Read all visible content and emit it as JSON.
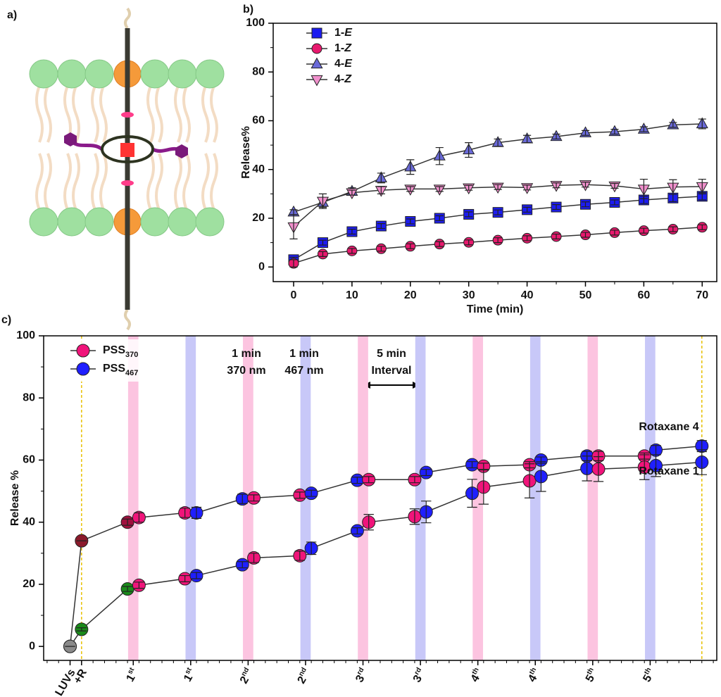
{
  "panel_labels": [
    "a)",
    "b)",
    "c)"
  ],
  "chart_data": [
    {
      "type": "line",
      "x_label": "Time (min)",
      "y_label": "Release%",
      "x": [
        0,
        5,
        10,
        15,
        20,
        25,
        30,
        35,
        40,
        45,
        50,
        55,
        60,
        65,
        70
      ],
      "xlim": [
        -3.5,
        72.5
      ],
      "xticks": [
        0,
        10,
        20,
        30,
        40,
        50,
        60,
        70
      ],
      "xminor": 5,
      "ylim": [
        -6,
        100
      ],
      "yticks": [
        0,
        20,
        40,
        60,
        80,
        100
      ],
      "yminor": 10,
      "legend_position": "upper left",
      "series": [
        {
          "name": "1-E",
          "color": "#1c1cf0",
          "marker": "square",
          "values": [
            3,
            10,
            14.5,
            16.8,
            18.7,
            20,
            21.6,
            22.4,
            23.5,
            24.6,
            25.7,
            26.5,
            27.5,
            28.3,
            29
          ],
          "errors": [
            1,
            1,
            1,
            1,
            1,
            1,
            1,
            1,
            1,
            1,
            1,
            1,
            1.5,
            1.5,
            1.5
          ]
        },
        {
          "name": "1-Z",
          "color": "#e8196e",
          "marker": "circle",
          "values": [
            1.5,
            5.3,
            6.6,
            7.5,
            8.5,
            9.4,
            10.1,
            11,
            11.8,
            12.5,
            13.2,
            14.1,
            14.9,
            15.5,
            16.3
          ],
          "errors": [
            1.5,
            1,
            1,
            1,
            1,
            1,
            1,
            1,
            1,
            1,
            1,
            1,
            1,
            1,
            1
          ]
        },
        {
          "name": "4-E",
          "color": "#6a6ad8",
          "marker": "triangle-up",
          "values": [
            22.5,
            26.5,
            31,
            36.5,
            41,
            45.5,
            48,
            51,
            52.5,
            53.5,
            55,
            55.5,
            56.5,
            58.3,
            58.7
          ],
          "errors": [
            1,
            2,
            1.5,
            2,
            3,
            3.5,
            3,
            1.5,
            1.5,
            1,
            1,
            1,
            1,
            1,
            2
          ]
        },
        {
          "name": "4-Z",
          "color": "#f090cc",
          "marker": "triangle-down",
          "values": [
            16.5,
            27,
            30.5,
            31.5,
            32,
            32,
            32.5,
            32.8,
            32.6,
            33.5,
            33.8,
            33.3,
            32,
            32.8,
            33
          ],
          "errors": [
            5,
            3,
            1,
            1.5,
            1,
            1,
            1,
            1,
            1,
            1,
            1,
            1,
            4,
            3,
            3
          ]
        }
      ]
    },
    {
      "type": "line",
      "y_label": "Release %",
      "x": [
        0,
        1,
        5,
        6,
        10,
        11,
        15,
        16,
        20,
        21,
        25,
        26,
        30,
        31,
        35,
        36,
        40,
        41,
        45,
        46,
        50,
        51,
        55
      ],
      "xlim": [
        -2.3,
        56.3
      ],
      "xticks": [
        {
          "value": 0,
          "label": "LUVs"
        },
        {
          "value": 1,
          "label": "+R"
        },
        {
          "value": 5.5,
          "label": "1st"
        },
        {
          "value": 10.5,
          "label": "1st"
        },
        {
          "value": 15.5,
          "label": "2nd"
        },
        {
          "value": 20.5,
          "label": "2nd"
        },
        {
          "value": 25.5,
          "label": "3rd"
        },
        {
          "value": 30.5,
          "label": "3rd"
        },
        {
          "value": 35.5,
          "label": "4th"
        },
        {
          "value": 40.5,
          "label": "4th"
        },
        {
          "value": 45.5,
          "label": "5th"
        },
        {
          "value": 50.5,
          "label": "5th"
        }
      ],
      "xminor": 1,
      "ylim": [
        -4.5,
        100
      ],
      "yticks": [
        0,
        20,
        40,
        60,
        80,
        100
      ],
      "yminor": 10,
      "legend_position": "upper left",
      "legend": [
        {
          "name": "PSS370",
          "color": "#f0147a"
        },
        {
          "name": "PSS467",
          "color": "#1f1fff"
        }
      ],
      "stripes": [
        {
          "x": 5.5,
          "color": "#fcc4e0"
        },
        {
          "x": 10.5,
          "color": "#c8c8f8"
        },
        {
          "x": 15.5,
          "color": "#fcc4e0"
        },
        {
          "x": 20.5,
          "color": "#c8c8f8"
        },
        {
          "x": 25.5,
          "color": "#fcc4e0"
        },
        {
          "x": 30.5,
          "color": "#c8c8f8"
        },
        {
          "x": 35.5,
          "color": "#fcc4e0"
        },
        {
          "x": 40.5,
          "color": "#c8c8f8"
        },
        {
          "x": 45.5,
          "color": "#fcc4e0"
        },
        {
          "x": 50.5,
          "color": "#c8c8f8"
        }
      ],
      "stripe_width": 0.9,
      "dashed_x": [
        1,
        55
      ],
      "annotations": [
        "1 min",
        "370 nm",
        "1 min",
        "467 nm",
        "5 min",
        "Interval"
      ],
      "series": [
        {
          "name": "Rotaxane 4",
          "color": "#333333",
          "values": [
            0,
            34,
            40,
            41.5,
            43,
            43,
            47.5,
            47.8,
            48.7,
            49.3,
            53.5,
            53.7,
            53.7,
            56,
            58.5,
            58,
            58.5,
            60,
            61.3,
            61.3,
            61.3,
            63.2,
            64.5
          ],
          "errors": [
            0,
            0,
            1,
            1.5,
            1.5,
            1.8,
            1.5,
            1,
            1,
            1,
            1,
            1,
            1,
            1,
            1,
            1,
            1,
            1,
            1.5,
            1.5,
            1,
            1.5,
            1.8
          ],
          "colors": [
            "#8a8a8a",
            "#8b1a2b",
            "#a0103e",
            "#f0147a",
            "#f0147a",
            "#1f1fff",
            "#1f1fff",
            "#f0147a",
            "#f0147a",
            "#1f1fff",
            "#1f1fff",
            "#f0147a",
            "#f0147a",
            "#1f1fff",
            "#1f1fff",
            "#f0147a",
            "#f0147a",
            "#1f1fff",
            "#1f1fff",
            "#f0147a",
            "#f0147a",
            "#1f1fff",
            "#1f1fff"
          ]
        },
        {
          "name": "Rotaxane 1",
          "color": "#333333",
          "values": [
            0,
            5.5,
            18.5,
            19.7,
            21.8,
            22.8,
            26.3,
            28.5,
            29.2,
            31.6,
            37.2,
            40,
            41.8,
            43.3,
            49.3,
            51.3,
            53.3,
            54.7,
            57.3,
            57.1,
            57.7,
            58.2,
            59.3
          ],
          "errors": [
            0,
            0.5,
            0.8,
            1,
            1,
            1,
            1,
            1.5,
            1.5,
            2,
            1,
            2.5,
            2.5,
            3.5,
            4.5,
            5.5,
            5.5,
            4.8,
            4,
            4,
            4,
            3.5,
            4
          ],
          "colors": [
            "#8a8a8a",
            "#1a8a1a",
            "#1a8a1a",
            "#f0147a",
            "#f0147a",
            "#1f1fff",
            "#1f1fff",
            "#f0147a",
            "#f0147a",
            "#1f1fff",
            "#1f1fff",
            "#f0147a",
            "#f0147a",
            "#1f1fff",
            "#1f1fff",
            "#f0147a",
            "#f0147a",
            "#1f1fff",
            "#1f1fff",
            "#f0147a",
            "#f0147a",
            "#1f1fff",
            "#1f1fff"
          ]
        }
      ]
    }
  ]
}
